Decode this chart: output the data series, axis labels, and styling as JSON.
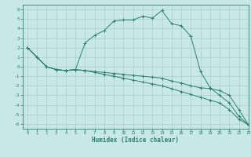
{
  "xlabel": "Humidex (Indice chaleur)",
  "bg_color": "#c8e8e8",
  "line_color": "#2e7d6e",
  "grid_color": "#a8cccc",
  "xlim": [
    -0.5,
    23
  ],
  "ylim": [
    -6.5,
    6.5
  ],
  "xticks": [
    0,
    1,
    2,
    3,
    4,
    5,
    6,
    7,
    8,
    9,
    10,
    11,
    12,
    13,
    14,
    15,
    16,
    17,
    18,
    19,
    20,
    21,
    22,
    23
  ],
  "yticks": [
    -6,
    -5,
    -4,
    -3,
    -2,
    -1,
    0,
    1,
    2,
    3,
    4,
    5,
    6
  ],
  "line1_x": [
    0,
    1,
    2,
    3,
    4,
    5,
    6,
    7,
    8,
    9,
    10,
    11,
    12,
    13,
    14,
    15,
    16,
    17,
    18,
    19,
    20,
    21,
    22,
    23
  ],
  "line1_y": [
    2.0,
    1.0,
    0.0,
    -0.3,
    -0.4,
    -0.3,
    2.5,
    3.3,
    3.8,
    4.8,
    4.9,
    4.9,
    5.3,
    5.1,
    5.9,
    4.5,
    4.3,
    3.2,
    -0.5,
    -2.2,
    -3.0,
    -3.8,
    -5.2,
    -6.1
  ],
  "line2_x": [
    0,
    1,
    2,
    3,
    4,
    5,
    6,
    7,
    8,
    9,
    10,
    11,
    12,
    13,
    14,
    15,
    16,
    17,
    18,
    19,
    20,
    21,
    22,
    23
  ],
  "line2_y": [
    2.0,
    1.0,
    0.0,
    -0.3,
    -0.4,
    -0.3,
    -0.4,
    -0.5,
    -0.6,
    -0.7,
    -0.8,
    -0.9,
    -1.0,
    -1.1,
    -1.2,
    -1.5,
    -1.7,
    -2.0,
    -2.2,
    -2.3,
    -2.5,
    -3.0,
    -4.5,
    -6.1
  ],
  "line3_x": [
    0,
    1,
    2,
    3,
    4,
    5,
    6,
    7,
    8,
    9,
    10,
    11,
    12,
    13,
    14,
    15,
    16,
    17,
    18,
    19,
    20,
    21,
    22,
    23
  ],
  "line3_y": [
    2.0,
    1.0,
    0.0,
    -0.3,
    -0.4,
    -0.3,
    -0.4,
    -0.6,
    -0.8,
    -1.0,
    -1.2,
    -1.4,
    -1.6,
    -1.8,
    -2.0,
    -2.3,
    -2.6,
    -2.9,
    -3.2,
    -3.5,
    -3.8,
    -4.5,
    -5.5,
    -6.1
  ]
}
